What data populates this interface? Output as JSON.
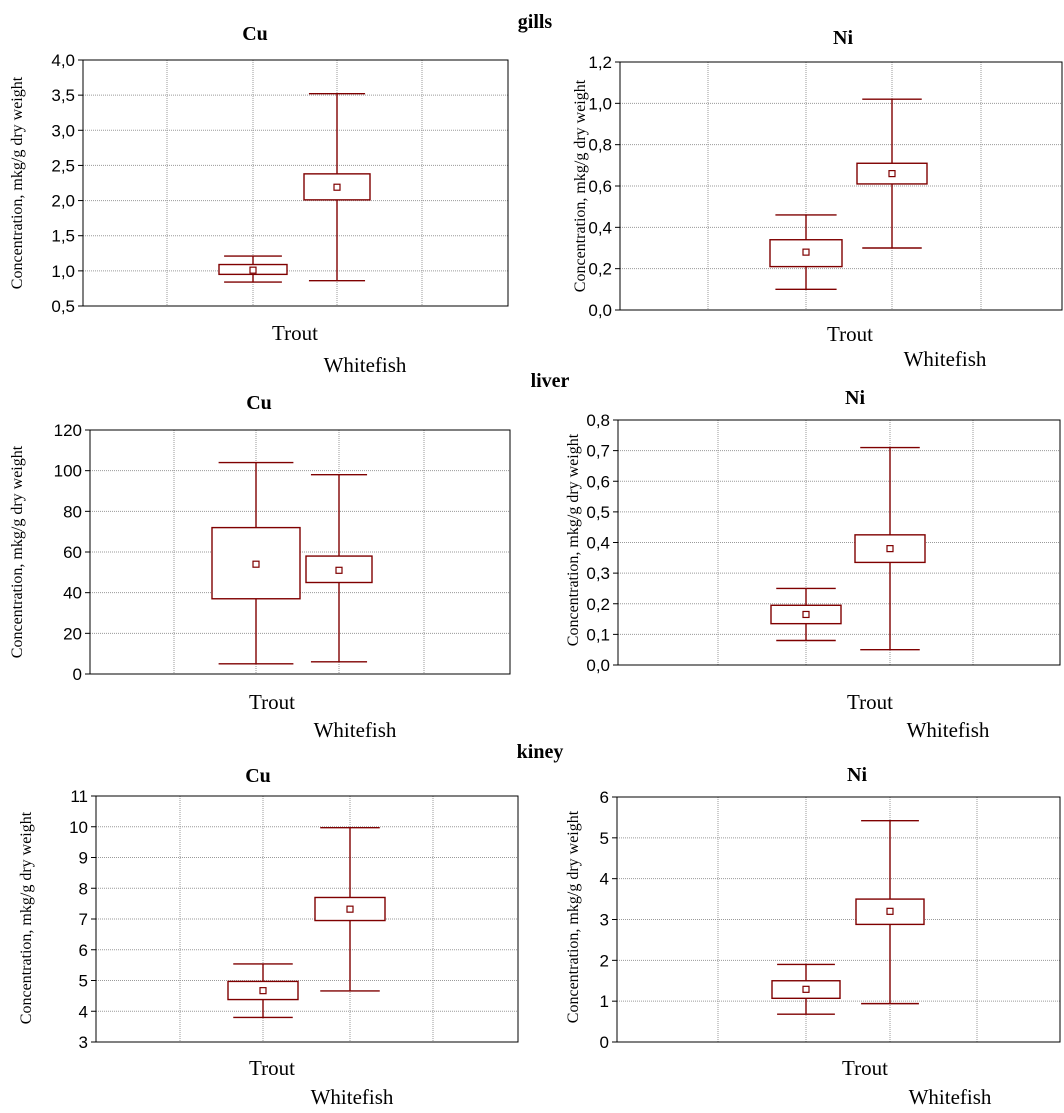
{
  "sections": [
    {
      "title": "gills"
    },
    {
      "title": "liver"
    },
    {
      "title": "kiney"
    }
  ],
  "chart_data": [
    {
      "type": "box",
      "section": "gills",
      "title": "Cu",
      "ylabel": "Concentration,  mkg/g  dry  weight",
      "ylim": [
        0.5,
        4.0
      ],
      "yticks": [
        0.5,
        1.0,
        1.5,
        2.0,
        2.5,
        3.0,
        3.5,
        4.0
      ],
      "ytick_labels": [
        "0,5",
        "1,0",
        "1,5",
        "2,0",
        "2,5",
        "3,0",
        "3,5",
        "4,0"
      ],
      "categories": [
        "Trout",
        "Whitefish"
      ],
      "series": [
        {
          "name": "Trout",
          "whisker_low": 0.84,
          "box_low": 0.95,
          "center": 1.01,
          "box_high": 1.09,
          "whisker_high": 1.21
        },
        {
          "name": "Whitefish",
          "whisker_low": 0.86,
          "box_low": 2.01,
          "center": 2.19,
          "box_high": 2.38,
          "whisker_high": 3.52
        }
      ],
      "grid": true,
      "color": "#7f0000"
    },
    {
      "type": "box",
      "section": "gills",
      "title": "Ni",
      "ylabel": "Concentration,  mkg/g  dry  weight",
      "ylim": [
        0.0,
        1.2
      ],
      "yticks": [
        0.0,
        0.2,
        0.4,
        0.6,
        0.8,
        1.0,
        1.2
      ],
      "ytick_labels": [
        "0,0",
        "0,2",
        "0,4",
        "0,6",
        "0,8",
        "1,0",
        "1,2"
      ],
      "categories": [
        "Trout",
        "Whitefish"
      ],
      "series": [
        {
          "name": "Trout",
          "whisker_low": 0.1,
          "box_low": 0.21,
          "center": 0.28,
          "box_high": 0.34,
          "whisker_high": 0.46
        },
        {
          "name": "Whitefish",
          "whisker_low": 0.3,
          "box_low": 0.61,
          "center": 0.66,
          "box_high": 0.71,
          "whisker_high": 1.02
        }
      ],
      "grid": true,
      "color": "#7f0000"
    },
    {
      "type": "box",
      "section": "liver",
      "title": "Cu",
      "ylabel": "Concentration,  mkg/g  dry  weight",
      "ylim": [
        0,
        120
      ],
      "yticks": [
        0,
        20,
        40,
        60,
        80,
        100,
        120
      ],
      "ytick_labels": [
        "0",
        "20",
        "40",
        "60",
        "80",
        "100",
        "120"
      ],
      "categories": [
        "Trout",
        "Whitefish"
      ],
      "series": [
        {
          "name": "Trout",
          "whisker_low": 5,
          "box_low": 37,
          "center": 54,
          "box_high": 72,
          "whisker_high": 104
        },
        {
          "name": "Whitefish",
          "whisker_low": 6,
          "box_low": 45,
          "center": 51,
          "box_high": 58,
          "whisker_high": 98
        }
      ],
      "grid": true,
      "color": "#7f0000"
    },
    {
      "type": "box",
      "section": "liver",
      "title": "Ni",
      "ylabel": "Concentration,  mkg/g  dry  weight",
      "ylim": [
        0.0,
        0.8
      ],
      "yticks": [
        0.0,
        0.1,
        0.2,
        0.3,
        0.4,
        0.5,
        0.6,
        0.7,
        0.8
      ],
      "ytick_labels": [
        "0,0",
        "0,1",
        "0,2",
        "0,3",
        "0,4",
        "0,5",
        "0,6",
        "0,7",
        "0,8"
      ],
      "categories": [
        "Trout",
        "Whitefish"
      ],
      "series": [
        {
          "name": "Trout",
          "whisker_low": 0.08,
          "box_low": 0.135,
          "center": 0.165,
          "box_high": 0.195,
          "whisker_high": 0.25
        },
        {
          "name": "Whitefish",
          "whisker_low": 0.05,
          "box_low": 0.335,
          "center": 0.38,
          "box_high": 0.425,
          "whisker_high": 0.71
        }
      ],
      "grid": true,
      "color": "#7f0000"
    },
    {
      "type": "box",
      "section": "kiney",
      "title": "Cu",
      "ylabel": "Concentration,  mkg/g  dry  weight",
      "ylim": [
        3,
        11
      ],
      "yticks": [
        3,
        4,
        5,
        6,
        7,
        8,
        9,
        10,
        11
      ],
      "ytick_labels": [
        "3",
        "4",
        "5",
        "6",
        "7",
        "8",
        "9",
        "10",
        "11"
      ],
      "categories": [
        "Trout",
        "Whitefish"
      ],
      "series": [
        {
          "name": "Trout",
          "whisker_low": 3.8,
          "box_low": 4.38,
          "center": 4.67,
          "box_high": 4.97,
          "whisker_high": 5.54
        },
        {
          "name": "Whitefish",
          "whisker_low": 4.66,
          "box_low": 6.95,
          "center": 7.32,
          "box_high": 7.7,
          "whisker_high": 9.97
        }
      ],
      "grid": true,
      "color": "#7f0000"
    },
    {
      "type": "box",
      "section": "kiney",
      "title": "Ni",
      "ylabel": "Concentration,  mkg/g  dry  weight",
      "ylim": [
        0,
        6
      ],
      "yticks": [
        0,
        1,
        2,
        3,
        4,
        5,
        6
      ],
      "ytick_labels": [
        "0",
        "1",
        "2",
        "3",
        "4",
        "5",
        "6"
      ],
      "categories": [
        "Trout",
        "Whitefish"
      ],
      "series": [
        {
          "name": "Trout",
          "whisker_low": 0.68,
          "box_low": 1.07,
          "center": 1.29,
          "box_high": 1.5,
          "whisker_high": 1.9
        },
        {
          "name": "Whitefish",
          "whisker_low": 0.94,
          "box_low": 2.88,
          "center": 3.2,
          "box_high": 3.5,
          "whisker_high": 5.42
        }
      ],
      "grid": true,
      "color": "#7f0000"
    }
  ]
}
